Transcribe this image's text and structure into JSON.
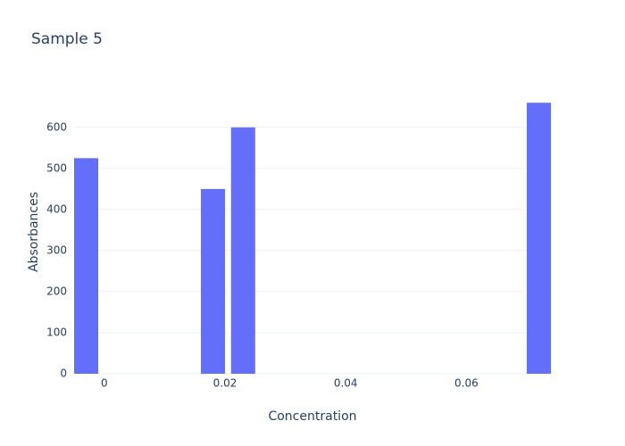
{
  "chart_data": {
    "type": "bar",
    "title": "Sample 5",
    "x_label": "Concentration",
    "y_label": "Absorbances",
    "x": [
      -0.003,
      0.018,
      0.023,
      0.072
    ],
    "values": [
      525,
      450,
      600,
      660
    ],
    "color": "#636efa",
    "xlim": [
      -0.005,
      0.074
    ],
    "xticks": [
      0,
      0.02,
      0.04,
      0.06
    ],
    "ylim": [
      0,
      693
    ],
    "yticks": [
      0,
      100,
      200,
      300,
      400,
      500,
      600
    ],
    "grid": true
  }
}
